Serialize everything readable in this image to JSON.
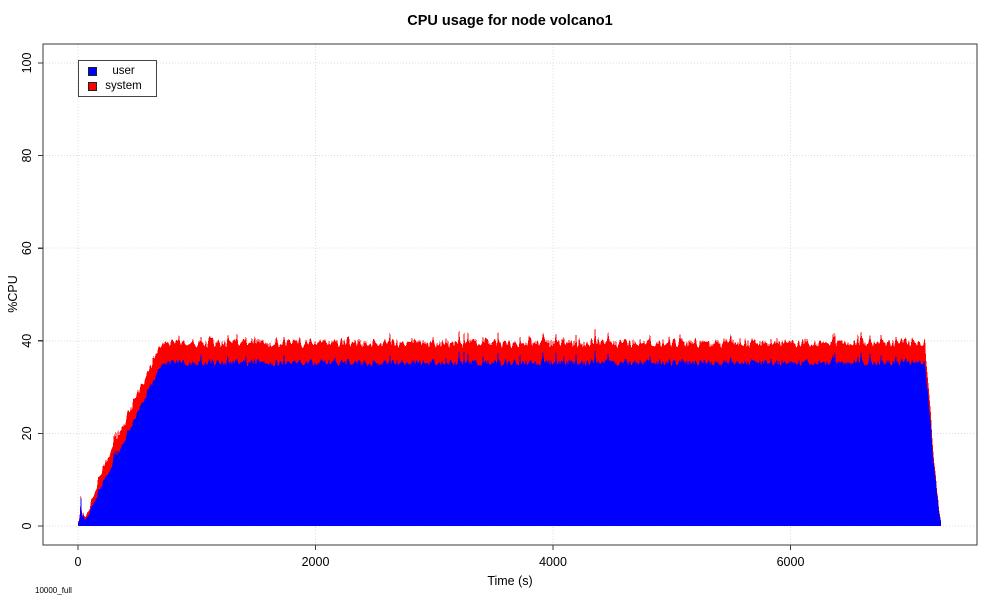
{
  "title": "CPU usage for node volcano1",
  "watermark": "10000_full",
  "chart_data": {
    "type": "area",
    "stacked": true,
    "title": "CPU usage for node volcano1",
    "xlabel": "Time (s)",
    "ylabel": "%CPU",
    "x_ticks": [
      0,
      2000,
      4000,
      6000
    ],
    "y_ticks": [
      0,
      20,
      40,
      60,
      80,
      100
    ],
    "xlim": [
      -300,
      7570
    ],
    "ylim": [
      -4,
      104
    ],
    "grid": "dotted",
    "colors": {
      "user": "#0000ff",
      "system": "#ff0000",
      "frame": "#3a3a3a",
      "grid": "#dcdcdc",
      "background": "#ffffff"
    },
    "legend": {
      "position": "top-left",
      "entries": [
        {
          "label": "user",
          "color": "#0000ff"
        },
        {
          "label": "system",
          "color": "#ff0000"
        }
      ]
    },
    "series": [
      {
        "name": "user",
        "points": [
          [
            0,
            0.6
          ],
          [
            16,
            0.8
          ],
          [
            20,
            10
          ],
          [
            24,
            10
          ],
          [
            28,
            1
          ],
          [
            45,
            2.5
          ],
          [
            55,
            1.2
          ],
          [
            70,
            1.5
          ],
          [
            80,
            2
          ],
          [
            700,
            34.5
          ],
          [
            745,
            35
          ],
          [
            7130,
            35
          ],
          [
            7170,
            25
          ],
          [
            7210,
            12
          ],
          [
            7250,
            3
          ],
          [
            7266,
            0.8
          ],
          [
            7274,
            0
          ]
        ]
      },
      {
        "name": "system",
        "points": [
          [
            0,
            0.2
          ],
          [
            60,
            0.5
          ],
          [
            100,
            1
          ],
          [
            200,
            2.5
          ],
          [
            300,
            3.5
          ],
          [
            700,
            4
          ],
          [
            7130,
            4
          ],
          [
            7200,
            1.5
          ],
          [
            7250,
            0.5
          ],
          [
            7274,
            0
          ]
        ]
      }
    ],
    "noise": {
      "seed": 42,
      "user_amp": 1.6,
      "system_amp": 1.4,
      "spike_prob": 0.05,
      "user_spike_amp": 3.2,
      "system_spike_amp": 1.6
    }
  }
}
